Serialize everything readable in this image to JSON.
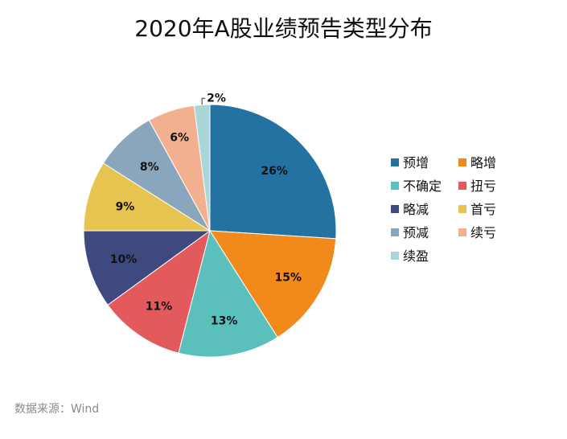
{
  "title": "2020年A股业绩预告类型分布",
  "source": "数据来源：Wind",
  "colors": {
    "预增": "#2372a2",
    "略增": "#f28a1b",
    "不确定": "#5bbfbc",
    "扭亏": "#e25a5b",
    "略减": "#3e4a7f",
    "首亏": "#e6c44f",
    "预减": "#8aa6bd",
    "续亏": "#f2b090",
    "续盈": "#a9d6d8"
  },
  "chart_data": {
    "type": "pie",
    "title": "2020年A股业绩预告类型分布",
    "legend_position": "right",
    "slices": [
      {
        "label": "预增",
        "value": 26,
        "display": "26%"
      },
      {
        "label": "略增",
        "value": 15,
        "display": "15%"
      },
      {
        "label": "不确定",
        "value": 13,
        "display": "13%"
      },
      {
        "label": "扭亏",
        "value": 11,
        "display": "11%"
      },
      {
        "label": "略减",
        "value": 10,
        "display": "10%"
      },
      {
        "label": "首亏",
        "value": 9,
        "display": "9%"
      },
      {
        "label": "预减",
        "value": 8,
        "display": "8%"
      },
      {
        "label": "续亏",
        "value": 6,
        "display": "6%"
      },
      {
        "label": "续盈",
        "value": 2,
        "display": "2%"
      }
    ]
  }
}
